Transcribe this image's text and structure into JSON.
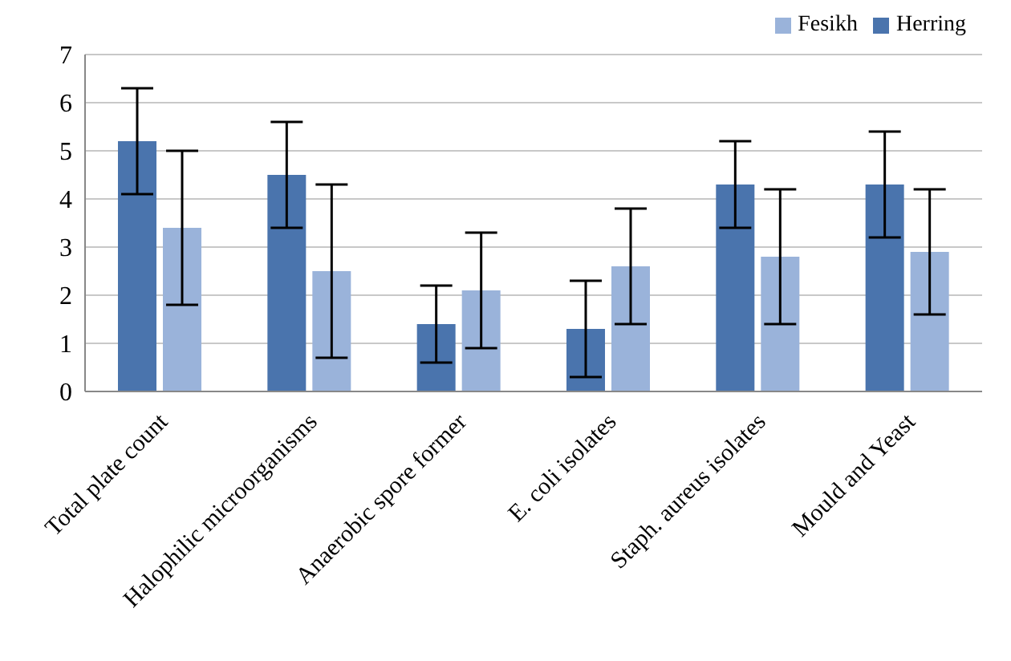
{
  "chart_data": {
    "type": "bar",
    "categories": [
      "Total plate count",
      "Halophilic microorganisms",
      "Anaerobic spore former",
      "E. coli isolates",
      "Staph. aureus isolates",
      "Mould and Yeast"
    ],
    "series": [
      {
        "name": "Herring",
        "color": "#4a74ad",
        "values": [
          5.2,
          4.5,
          1.4,
          1.3,
          4.3,
          4.3
        ],
        "errors": [
          [
            4.1,
            6.3
          ],
          [
            3.4,
            5.6
          ],
          [
            0.6,
            2.2
          ],
          [
            0.3,
            2.3
          ],
          [
            3.4,
            5.2
          ],
          [
            3.2,
            5.4
          ]
        ]
      },
      {
        "name": "Fesikh",
        "color": "#9ab3da",
        "values": [
          3.4,
          2.5,
          2.1,
          2.6,
          2.8,
          2.9
        ],
        "errors": [
          [
            1.8,
            5.0
          ],
          [
            0.7,
            4.3
          ],
          [
            0.9,
            3.3
          ],
          [
            1.4,
            3.8
          ],
          [
            1.4,
            4.2
          ],
          [
            1.6,
            4.2
          ]
        ]
      }
    ],
    "ylim": [
      0,
      7
    ],
    "yticks": [
      0,
      1,
      2,
      3,
      4,
      5,
      6,
      7
    ],
    "grid": "y",
    "legend": "top right"
  }
}
